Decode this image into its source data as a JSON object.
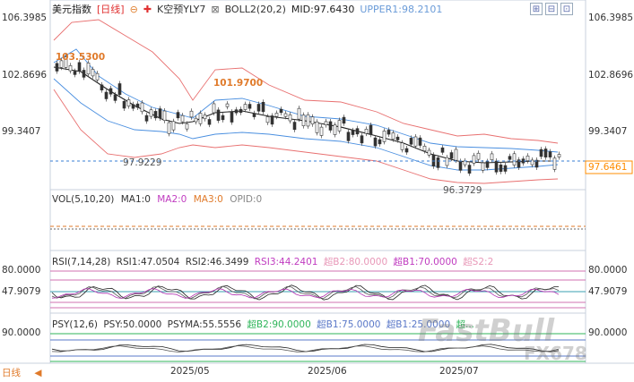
{
  "header": {
    "title": "美元指数",
    "period": "[日线]",
    "indicator_k": "K空预YLY7",
    "indicator_boll": "BOLL2(20,2)",
    "mid": "MID:97.6430",
    "upper": "UPPER1:98.2101"
  },
  "toolbar": [
    "⊞",
    "⊟",
    "⊡",
    "▣"
  ],
  "price_axis": {
    "labels": [
      "106.3985",
      "102.8696",
      "99.3407"
    ],
    "current": "97.6461"
  },
  "annotations": {
    "high1": "103.5300",
    "high2": "101.9700",
    "low1": "97.9229",
    "low2": "96.3729"
  },
  "volume_panel": {
    "legend": [
      "VOL(5,10,20)",
      "MA1:0",
      "MA2:0",
      "MA3:0",
      "OPID:0"
    ]
  },
  "rsi_panel": {
    "legend": [
      "RSI(7,14,28)",
      "RSI1:47.0504",
      "RSI2:46.3499",
      "RSI3:44.2401",
      "超B2:80.0000",
      "超B1:70.0000",
      "超S2:2"
    ],
    "labels": [
      "80.0000",
      "47.9079"
    ]
  },
  "psy_panel": {
    "legend": [
      "PSY(12,6)",
      "PSY:50.0000",
      "PSYMA:55.5556",
      "超B2:90.0000",
      "超B1:75.0000",
      "超B1:25.0000",
      "超..."
    ],
    "labels": [
      "90.0000"
    ]
  },
  "x_axis": {
    "period_label": "日线",
    "dates": [
      "2025/05",
      "2025/06",
      "2025/07"
    ]
  },
  "watermark": {
    "brand": "FastBull",
    "code": "FX678"
  },
  "colors": {
    "up": "#e03030",
    "down": "#333333",
    "mid": "#222222",
    "upper": "#e06060",
    "inner": "#3a7fd5",
    "current": "#ff8c00"
  }
}
